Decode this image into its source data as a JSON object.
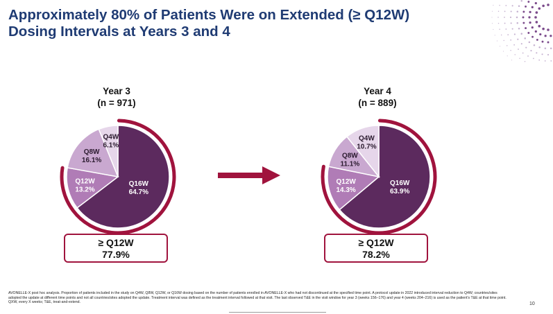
{
  "title": {
    "line1": "Approximately 80% of Patients Were on Extended (≥ Q12W)",
    "line2": "Dosing Intervals at Years 3 and 4"
  },
  "colors": {
    "title": "#1f3b73",
    "q16w": "#5c2a5e",
    "q12w": "#b07cb6",
    "q8w": "#c9a8d0",
    "q4w": "#e6d6ea",
    "accent_ring": "#a0133d",
    "arrow": "#a0133d"
  },
  "chart_data": [
    {
      "type": "pie",
      "title": "Year 3",
      "subtitle": "(n = 971)",
      "slices": [
        {
          "label": "Q16W",
          "value": 64.7,
          "display": "64.7%"
        },
        {
          "label": "Q12W",
          "value": 13.2,
          "display": "13.2%"
        },
        {
          "label": "Q8W",
          "value": 16.1,
          "display": "16.1%"
        },
        {
          "label": "Q4W",
          "value": 6.1,
          "display": "6.1%"
        }
      ],
      "callout": {
        "label": "≥ Q12W",
        "value": "77.9%"
      }
    },
    {
      "type": "pie",
      "title": "Year 4",
      "subtitle": "(n = 889)",
      "slices": [
        {
          "label": "Q16W",
          "value": 63.9,
          "display": "63.9%"
        },
        {
          "label": "Q12W",
          "value": 14.3,
          "display": "14.3%"
        },
        {
          "label": "Q8W",
          "value": 11.1,
          "display": "11.1%"
        },
        {
          "label": "Q4W",
          "value": 10.7,
          "display": "10.7%"
        }
      ],
      "callout": {
        "label": "≥ Q12W",
        "value": "78.2%"
      }
    }
  ],
  "footnote": "AVONELLE-X post hoc analysis. Proportion of patients included in the study on Q4W, Q8W, Q12W, or Q16W dosing based on the number of patients enrolled in AVONELLE-X who had not discontinued at the specified time point. A protocol update in 2022 introduced interval reduction to Q4W; countries/sites adopted the update at different time points and not all countries/sites adopted the update. Treatment interval was defined as the treatment interval followed at that visit. The last observed T&E in the visit window for year 3 (weeks 156–176) and year 4 (weeks 204–216) is used as the patient's T&E at that time point. QXW, every X weeks; T&E, treat-and-extend.",
  "page_number": "10"
}
